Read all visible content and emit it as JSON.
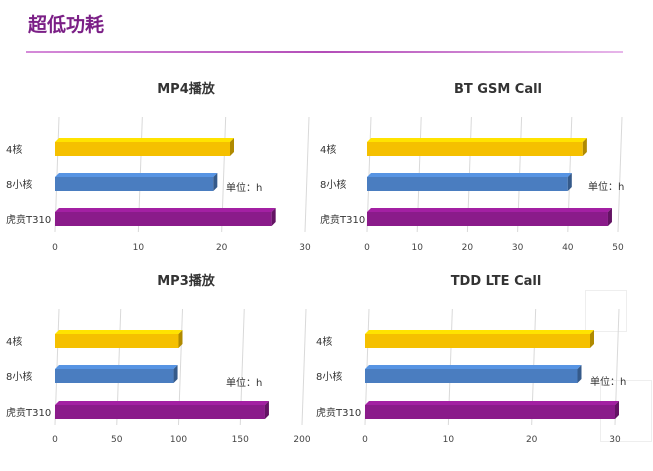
{
  "page": {
    "title": "超低功耗"
  },
  "unit_label": "单位：h",
  "colors": {
    "4核": "#f5c000",
    "8小核": "#4a7dc0",
    "虎贲T310": "#8a1b8a"
  },
  "chart_data": [
    {
      "type": "bar",
      "title": "MP4播放",
      "categories": [
        "4核",
        "8小核",
        "虎贲T310"
      ],
      "values": [
        21,
        19,
        26
      ],
      "xlim": [
        0,
        30
      ],
      "ticks": [
        0,
        10,
        20,
        30
      ],
      "xlabel": "单位：h",
      "ylabel": ""
    },
    {
      "type": "bar",
      "title": "BT GSM Call",
      "categories": [
        "4核",
        "8小核",
        "虎贲T310"
      ],
      "values": [
        43,
        40,
        48
      ],
      "xlim": [
        0,
        50
      ],
      "ticks": [
        0,
        10,
        20,
        30,
        40,
        50
      ],
      "xlabel": "单位：h",
      "ylabel": ""
    },
    {
      "type": "bar",
      "title": "MP3播放",
      "categories": [
        "4核",
        "8小核",
        "虎贲T310"
      ],
      "values": [
        100,
        96,
        170
      ],
      "xlim": [
        0,
        200
      ],
      "ticks": [
        0,
        50,
        100,
        150,
        200
      ],
      "xlabel": "单位：h",
      "ylabel": ""
    },
    {
      "type": "bar",
      "title": "TDD LTE Call",
      "categories": [
        "4核",
        "8小核",
        "虎贲T310"
      ],
      "values": [
        27,
        25.5,
        30
      ],
      "xlim": [
        0,
        30
      ],
      "ticks": [
        0,
        10,
        20,
        30
      ],
      "xlabel": "单位：h",
      "ylabel": ""
    }
  ]
}
